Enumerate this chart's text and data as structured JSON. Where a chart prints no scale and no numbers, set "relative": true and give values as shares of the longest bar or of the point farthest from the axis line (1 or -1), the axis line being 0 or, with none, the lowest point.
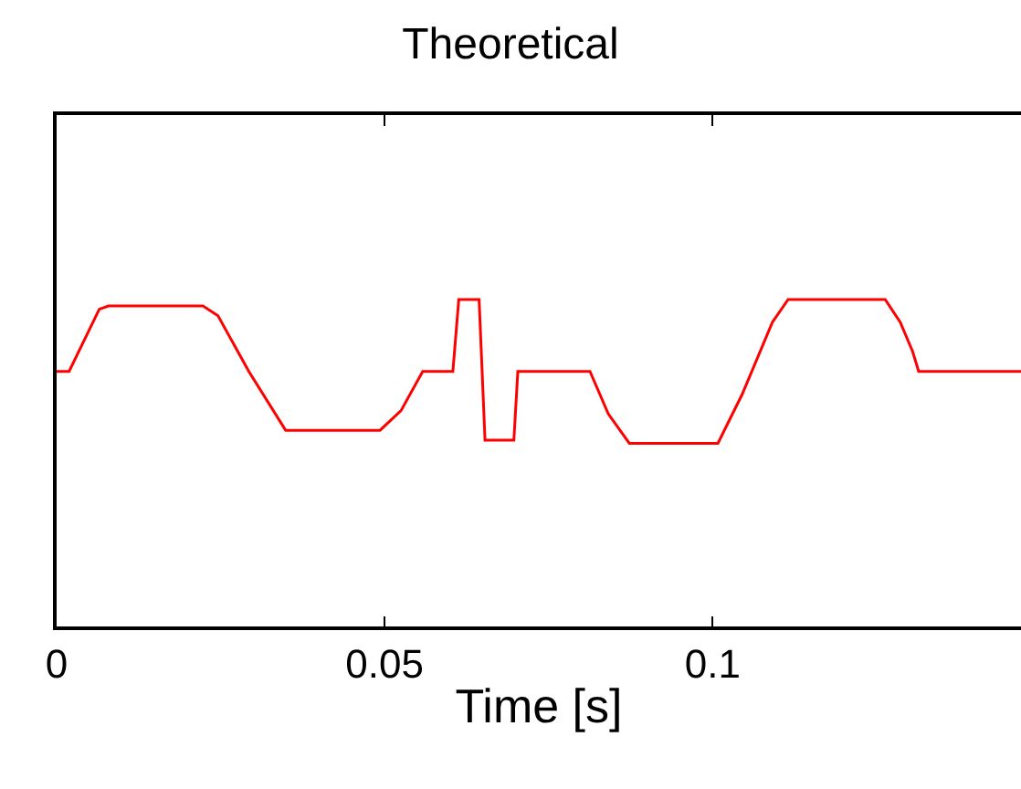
{
  "chart_data": {
    "type": "line",
    "title": "Theoretical",
    "xlabel": "Time [s]",
    "relative": true,
    "x": [
      0,
      0.0019,
      0.0065,
      0.0079,
      0.0223,
      0.0246,
      0.0293,
      0.0349,
      0.0493,
      0.0525,
      0.0558,
      0.0604,
      0.0613,
      0.0644,
      0.0653,
      0.0697,
      0.0703,
      0.0813,
      0.0841,
      0.0873,
      0.1008,
      0.1045,
      0.1091,
      0.1115,
      0.1263,
      0.1286,
      0.1305,
      0.1314,
      0.147
    ],
    "series": [
      {
        "color": "#ff0000",
        "values": [
          0.78,
          0.78,
          0.97,
          0.98,
          0.98,
          0.95,
          0.78,
          0.6,
          0.6,
          0.66,
          0.78,
          0.78,
          1,
          1,
          0.57,
          0.57,
          0.78,
          0.78,
          0.65,
          0.56,
          0.56,
          0.71,
          0.93,
          1,
          1,
          0.93,
          0.84,
          0.78,
          0.78
        ]
      }
    ],
    "xlim": [
      0,
      0.147
    ],
    "xticks": [
      0,
      0.05,
      0.1
    ],
    "marker": "none",
    "line_style": "solid"
  }
}
